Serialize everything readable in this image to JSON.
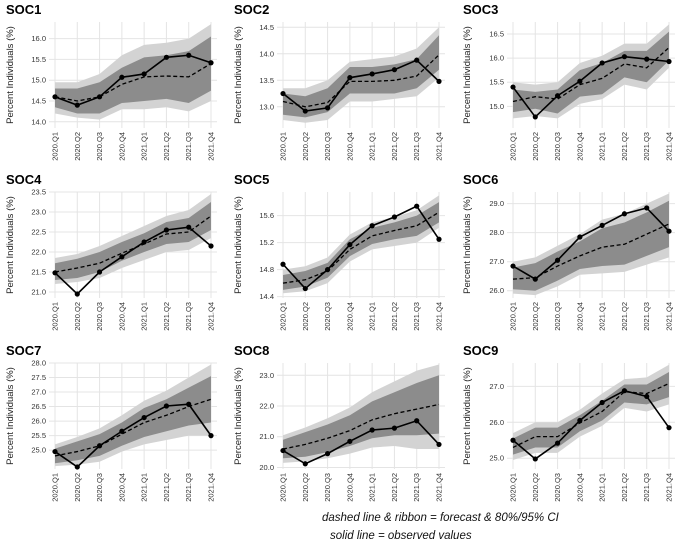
{
  "caption": {
    "line1": "dashed line & ribbon = forecast & 80%/95% CI",
    "line2": "solid line = observed values"
  },
  "colors": {
    "ci95": "#d3d3d3",
    "ci80": "#8c8c8c",
    "grid": "#e4e4e4",
    "line": "#000000"
  },
  "chart_data": [
    {
      "type": "line",
      "title": "SOC1",
      "ylabel": "Percent Individuals (%)",
      "categories": [
        "2020.Q1",
        "2020.Q2",
        "2020.Q3",
        "2020.Q4",
        "2021.Q1",
        "2021.Q2",
        "2021.Q3",
        "2021.Q4"
      ],
      "ylim": [
        13.85,
        16.4
      ],
      "yticks": [
        14.0,
        14.5,
        15.0,
        15.5,
        16.0
      ],
      "observed": [
        14.6,
        14.4,
        14.6,
        15.07,
        15.15,
        15.55,
        15.6,
        15.42
      ],
      "forecast": [
        14.6,
        14.5,
        14.6,
        14.9,
        15.08,
        15.1,
        15.08,
        15.4
      ],
      "lo80": [
        14.35,
        14.2,
        14.2,
        14.45,
        14.5,
        14.55,
        14.45,
        14.75
      ],
      "hi80": [
        14.8,
        14.8,
        14.95,
        15.3,
        15.55,
        15.6,
        15.7,
        16.05
      ],
      "lo95": [
        14.2,
        14.1,
        14.05,
        14.3,
        14.3,
        14.35,
        14.25,
        14.5
      ],
      "hi95": [
        14.95,
        14.95,
        15.15,
        15.6,
        15.85,
        15.9,
        16.0,
        16.35
      ]
    },
    {
      "type": "line",
      "title": "SOC2",
      "ylabel": "Percent Individuals (%)",
      "categories": [
        "2020.Q1",
        "2020.Q2",
        "2020.Q3",
        "2020.Q4",
        "2021.Q1",
        "2021.Q2",
        "2021.Q3",
        "2021.Q4"
      ],
      "ylim": [
        12.6,
        14.6
      ],
      "yticks": [
        13.0,
        13.5,
        14.0,
        14.5
      ],
      "observed": [
        13.25,
        12.92,
        12.98,
        13.55,
        13.62,
        13.7,
        13.88,
        13.48
      ],
      "forecast": [
        13.1,
        13.0,
        13.08,
        13.48,
        13.48,
        13.5,
        13.58,
        13.98
      ],
      "lo80": [
        12.85,
        12.8,
        12.9,
        13.25,
        13.25,
        13.25,
        13.35,
        13.7
      ],
      "hi80": [
        13.25,
        13.2,
        13.35,
        13.75,
        13.75,
        13.8,
        13.9,
        14.35
      ],
      "lo95": [
        12.75,
        12.7,
        12.75,
        13.1,
        13.1,
        13.15,
        13.2,
        13.55
      ],
      "hi95": [
        13.35,
        13.35,
        13.5,
        13.85,
        13.9,
        13.95,
        14.1,
        14.5
      ]
    },
    {
      "type": "line",
      "title": "SOC3",
      "ylabel": "Percent Individuals (%)",
      "categories": [
        "2020.Q1",
        "2020.Q2",
        "2020.Q3",
        "2020.Q4",
        "2021.Q1",
        "2021.Q2",
        "2021.Q3",
        "2021.Q4"
      ],
      "ylim": [
        14.55,
        16.75
      ],
      "yticks": [
        15.0,
        15.5,
        16.0,
        16.5
      ],
      "observed": [
        15.4,
        14.78,
        15.22,
        15.52,
        15.9,
        16.03,
        15.98,
        15.93
      ],
      "forecast": [
        15.1,
        15.2,
        15.15,
        15.45,
        15.58,
        15.88,
        15.8,
        16.22
      ],
      "lo80": [
        14.88,
        14.95,
        14.85,
        15.2,
        15.25,
        15.6,
        15.5,
        15.95
      ],
      "hi80": [
        15.35,
        15.3,
        15.35,
        15.75,
        15.9,
        16.15,
        16.15,
        16.55
      ],
      "lo95": [
        14.75,
        14.8,
        14.75,
        15.05,
        15.15,
        15.45,
        15.35,
        15.8
      ],
      "hi95": [
        15.5,
        15.45,
        15.5,
        15.9,
        16.05,
        16.3,
        16.3,
        16.7
      ]
    },
    {
      "type": "line",
      "title": "SOC4",
      "ylabel": "Percent Individuals (%)",
      "categories": [
        "2020.Q1",
        "2020.Q2",
        "2020.Q3",
        "2020.Q4",
        "2021.Q1",
        "2021.Q2",
        "2021.Q3",
        "2021.Q4"
      ],
      "ylim": [
        20.85,
        23.5
      ],
      "yticks": [
        21.0,
        21.5,
        22.0,
        22.5,
        23.0,
        23.5
      ],
      "observed": [
        21.48,
        20.95,
        21.5,
        21.88,
        22.25,
        22.55,
        22.62,
        22.15
      ],
      "forecast": [
        21.5,
        21.6,
        21.72,
        21.97,
        22.2,
        22.45,
        22.5,
        22.9
      ],
      "lo80": [
        21.3,
        21.35,
        21.5,
        21.78,
        22.0,
        22.2,
        22.25,
        22.55
      ],
      "hi80": [
        21.72,
        21.83,
        22.0,
        22.25,
        22.47,
        22.75,
        22.85,
        23.25
      ],
      "lo95": [
        21.2,
        21.25,
        21.35,
        21.6,
        21.8,
        22.0,
        22.05,
        22.35
      ],
      "hi95": [
        21.85,
        21.95,
        22.15,
        22.4,
        22.65,
        22.9,
        23.05,
        23.45
      ]
    },
    {
      "type": "line",
      "title": "SOC5",
      "ylabel": "Percent Individuals (%)",
      "categories": [
        "2020.Q1",
        "2020.Q2",
        "2020.Q3",
        "2020.Q4",
        "2021.Q1",
        "2021.Q2",
        "2021.Q3",
        "2021.Q4"
      ],
      "ylim": [
        14.38,
        15.95
      ],
      "yticks": [
        14.4,
        14.8,
        15.2,
        15.6
      ],
      "observed": [
        14.88,
        14.52,
        14.8,
        15.17,
        15.45,
        15.58,
        15.74,
        15.25
      ],
      "forecast": [
        14.6,
        14.65,
        14.78,
        15.1,
        15.3,
        15.38,
        15.45,
        15.65
      ],
      "lo80": [
        14.5,
        14.55,
        14.68,
        15.0,
        15.18,
        15.25,
        15.3,
        15.5
      ],
      "hi80": [
        14.72,
        14.78,
        14.9,
        15.25,
        15.42,
        15.5,
        15.6,
        15.8
      ],
      "lo95": [
        14.45,
        14.48,
        14.6,
        14.92,
        15.1,
        15.15,
        15.2,
        15.42
      ],
      "hi95": [
        14.8,
        14.85,
        14.98,
        15.32,
        15.5,
        15.58,
        15.68,
        15.9
      ]
    },
    {
      "type": "line",
      "title": "SOC6",
      "ylabel": "Percent Individuals (%)",
      "categories": [
        "2020.Q1",
        "2020.Q2",
        "2020.Q3",
        "2020.Q4",
        "2021.Q1",
        "2021.Q2",
        "2021.Q3",
        "2021.Q4"
      ],
      "ylim": [
        25.75,
        29.4
      ],
      "yticks": [
        26.0,
        27.0,
        28.0,
        29.0
      ],
      "observed": [
        26.85,
        26.4,
        27.05,
        27.85,
        28.25,
        28.65,
        28.85,
        28.05
      ],
      "forecast": [
        26.4,
        26.45,
        26.85,
        27.2,
        27.5,
        27.6,
        27.95,
        28.3
      ],
      "lo80": [
        26.05,
        26.0,
        26.35,
        26.75,
        26.85,
        26.9,
        27.2,
        27.5
      ],
      "hi80": [
        26.8,
        26.95,
        27.35,
        27.7,
        28.15,
        28.35,
        28.7,
        29.1
      ],
      "lo95": [
        25.9,
        25.85,
        26.15,
        26.55,
        26.6,
        26.65,
        26.9,
        27.15
      ],
      "hi95": [
        27.0,
        27.15,
        27.55,
        27.95,
        28.45,
        28.65,
        29.0,
        29.35
      ]
    },
    {
      "type": "line",
      "title": "SOC7",
      "ylabel": "Percent Individuals (%)",
      "categories": [
        "2020.Q1",
        "2020.Q2",
        "2020.Q3",
        "2020.Q4",
        "2021.Q1",
        "2021.Q2",
        "2021.Q3",
        "2021.Q4"
      ],
      "ylim": [
        24.35,
        28.0
      ],
      "yticks": [
        25.0,
        25.5,
        26.0,
        26.5,
        27.0,
        27.5,
        28.0
      ],
      "observed": [
        24.95,
        24.42,
        25.15,
        25.65,
        26.12,
        26.52,
        26.58,
        25.5
      ],
      "forecast": [
        24.8,
        24.95,
        25.15,
        25.55,
        25.95,
        26.2,
        26.5,
        26.75
      ],
      "lo80": [
        24.55,
        24.65,
        24.8,
        25.15,
        25.45,
        25.65,
        25.85,
        25.95
      ],
      "hi80": [
        25.05,
        25.3,
        25.55,
        25.95,
        26.45,
        26.75,
        27.15,
        27.55
      ],
      "lo95": [
        24.45,
        24.5,
        24.6,
        24.95,
        25.2,
        25.35,
        25.5,
        25.5
      ],
      "hi95": [
        25.2,
        25.45,
        25.75,
        26.2,
        26.7,
        27.05,
        27.5,
        27.95
      ]
    },
    {
      "type": "line",
      "title": "SOC8",
      "ylabel": "Percent Individuals (%)",
      "categories": [
        "2020.Q1",
        "2020.Q2",
        "2020.Q3",
        "2020.Q4",
        "2021.Q1",
        "2021.Q2",
        "2021.Q3",
        "2021.Q4"
      ],
      "ylim": [
        19.95,
        23.4
      ],
      "yticks": [
        20.0,
        21.0,
        22.0,
        23.0
      ],
      "observed": [
        20.55,
        20.12,
        20.45,
        20.85,
        21.22,
        21.28,
        21.52,
        20.75
      ],
      "forecast": [
        20.6,
        20.75,
        20.95,
        21.2,
        21.55,
        21.75,
        21.9,
        22.05
      ],
      "lo80": [
        20.3,
        20.35,
        20.5,
        20.7,
        20.95,
        21.05,
        21.05,
        21.1
      ],
      "hi80": [
        20.9,
        21.15,
        21.4,
        21.7,
        22.15,
        22.45,
        22.75,
        23.0
      ],
      "lo95": [
        20.15,
        20.2,
        20.3,
        20.45,
        20.65,
        20.7,
        20.6,
        20.6
      ],
      "hi95": [
        21.05,
        21.3,
        21.6,
        21.95,
        22.45,
        22.8,
        23.15,
        23.35
      ]
    },
    {
      "type": "line",
      "title": "SOC9",
      "ylabel": "Percent Individuals (%)",
      "categories": [
        "2020.Q1",
        "2020.Q2",
        "2020.Q3",
        "2020.Q4",
        "2021.Q1",
        "2021.Q2",
        "2021.Q3",
        "2021.Q4"
      ],
      "ylim": [
        24.7,
        27.65
      ],
      "yticks": [
        25.0,
        26.0,
        27.0
      ],
      "observed": [
        25.5,
        24.98,
        25.42,
        26.05,
        26.55,
        26.88,
        26.72,
        25.85
      ],
      "forecast": [
        25.3,
        25.6,
        25.6,
        25.98,
        26.3,
        26.85,
        26.8,
        27.08
      ],
      "lo80": [
        25.1,
        25.3,
        25.3,
        25.75,
        26.05,
        26.55,
        26.5,
        26.7
      ],
      "hi80": [
        25.55,
        25.85,
        25.85,
        26.2,
        26.6,
        27.05,
        27.05,
        27.4
      ],
      "lo95": [
        24.95,
        25.15,
        25.15,
        25.6,
        25.9,
        26.4,
        26.3,
        26.5
      ],
      "hi95": [
        25.7,
        26.0,
        26.0,
        26.35,
        26.8,
        27.2,
        27.25,
        27.6
      ]
    }
  ]
}
